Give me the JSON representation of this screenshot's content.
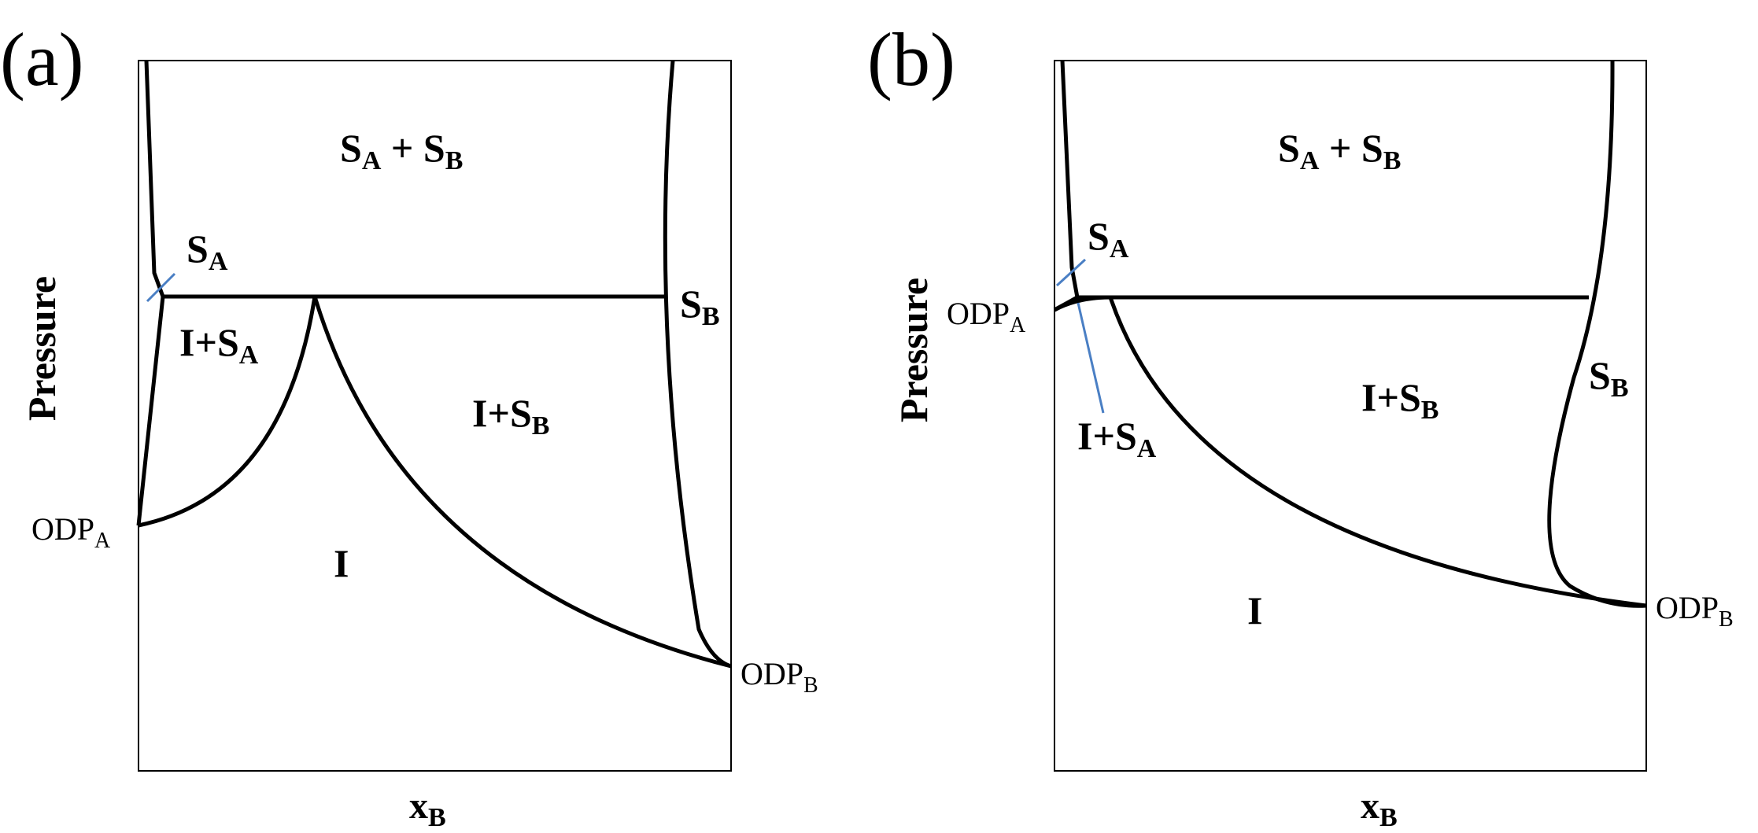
{
  "panels": [
    {
      "id": "a",
      "panel_label": "(a)",
      "xlabel_main": "x",
      "xlabel_sub": "B",
      "ylabel": "Pressure",
      "regions": {
        "top": {
          "pre": "S",
          "sub": "A",
          "mid": " + S",
          "sub2": "B"
        },
        "sa": {
          "pre": "S",
          "sub": "A"
        },
        "sb": {
          "pre": "S",
          "sub": "B"
        },
        "isa": {
          "pre": "I+S",
          "sub": "A"
        },
        "isb": {
          "pre": "I+S",
          "sub": "B"
        },
        "i": "I"
      },
      "points": {
        "odpa": {
          "pre": "ODP",
          "sub": "A"
        },
        "odpb": {
          "pre": "ODP",
          "sub": "B"
        }
      }
    },
    {
      "id": "b",
      "panel_label": "(b)",
      "xlabel_main": "x",
      "xlabel_sub": "B",
      "ylabel": "Pressure",
      "regions": {
        "top": {
          "pre": "S",
          "sub": "A",
          "mid": " + S",
          "sub2": "B"
        },
        "sa": {
          "pre": "S",
          "sub": "A"
        },
        "sb": {
          "pre": "S",
          "sub": "B"
        },
        "isa": {
          "pre": "I+S",
          "sub": "A"
        },
        "isb": {
          "pre": "I+S",
          "sub": "B"
        },
        "i": "I"
      },
      "points": {
        "odpa": {
          "pre": "ODP",
          "sub": "A"
        },
        "odpb": {
          "pre": "ODP",
          "sub": "B"
        }
      }
    }
  ],
  "colors": {
    "line": "#000000",
    "pointer": "#4a7fc4"
  }
}
